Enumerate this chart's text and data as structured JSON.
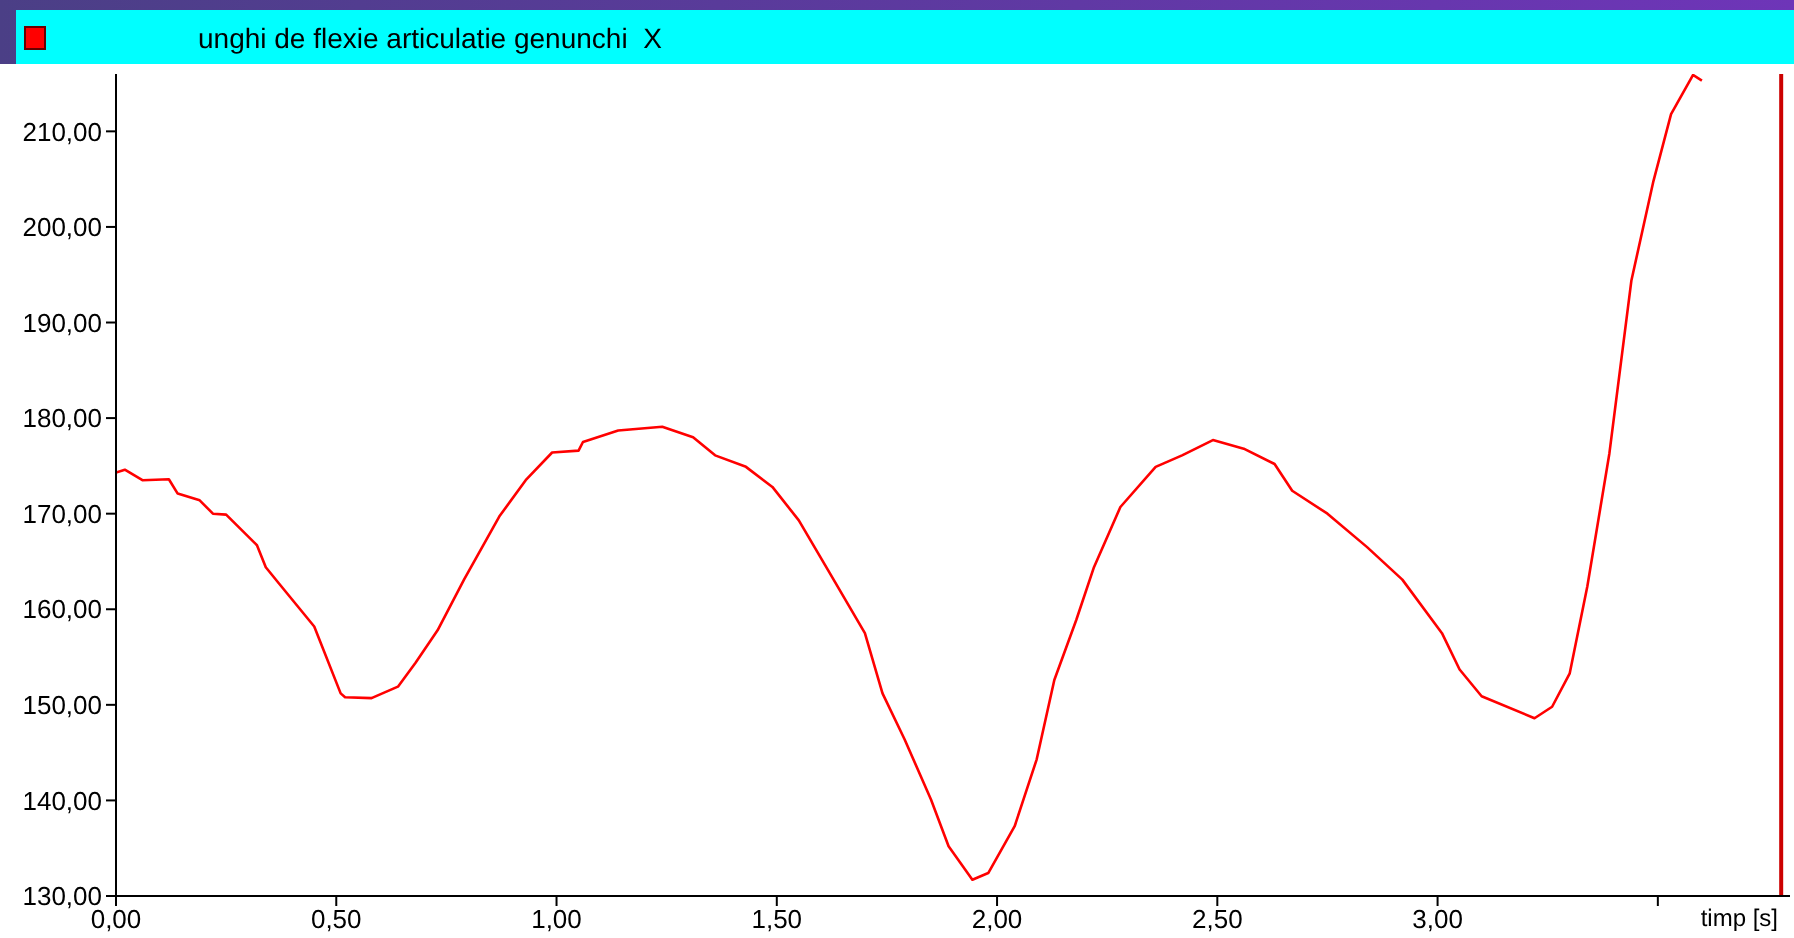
{
  "chart_data": {
    "type": "line",
    "title": "unghi de flexie articulatie genunchi  X",
    "xlabel": "timp [s]",
    "x": [
      0,
      0.02,
      0.06,
      0.12,
      0.14,
      0.19,
      0.22,
      0.25,
      0.32,
      0.34,
      0.37,
      0.45,
      0.51,
      0.52,
      0.58,
      0.64,
      0.68,
      0.73,
      0.79,
      0.87,
      0.93,
      0.99,
      1.05,
      1.06,
      1.14,
      1.24,
      1.31,
      1.36,
      1.43,
      1.49,
      1.55,
      1.62,
      1.7,
      1.74,
      1.79,
      1.85,
      1.89,
      1.944,
      1.98,
      2.04,
      2.09,
      2.13,
      2.18,
      2.22,
      2.28,
      2.36,
      2.42,
      2.49,
      2.56,
      2.63,
      2.67,
      2.75,
      2.84,
      2.92,
      3.01,
      3.05,
      3.1,
      3.22,
      3.26,
      3.3,
      3.34,
      3.39,
      3.44,
      3.49,
      3.53,
      3.58,
      3.6
    ],
    "series": [
      {
        "color": "#ff0000",
        "values": [
          174.3,
          174.6,
          173.5,
          173.6,
          172.1,
          171.4,
          170,
          169.9,
          166.7,
          164.4,
          162.7,
          158.2,
          151.2,
          150.8,
          150.7,
          151.9,
          154.4,
          157.8,
          163.1,
          169.7,
          173.5,
          176.4,
          176.6,
          177.5,
          178.7,
          179.1,
          178,
          176.1,
          174.9,
          172.8,
          169.3,
          163.8,
          157.5,
          151.2,
          146.4,
          140.1,
          135.2,
          131.7,
          132.4,
          137.3,
          144.3,
          152.6,
          158.9,
          164.4,
          170.7,
          174.9,
          176.1,
          177.7,
          176.8,
          175.2,
          172.4,
          170,
          166.5,
          163.1,
          157.5,
          153.7,
          150.9,
          148.6,
          149.8,
          153.3,
          162.4,
          176.3,
          194.4,
          204.8,
          211.8,
          215.9,
          215.3
        ]
      }
    ],
    "xlim": [
      0,
      3.8
    ],
    "ylim": [
      130,
      216
    ],
    "xticks": [
      {
        "value": 0,
        "label": "0,00"
      },
      {
        "value": 0.5,
        "label": "0,50"
      },
      {
        "value": 1,
        "label": "1,00"
      },
      {
        "value": 1.5,
        "label": "1,50"
      },
      {
        "value": 2,
        "label": "2,00"
      },
      {
        "value": 2.5,
        "label": "2,50"
      },
      {
        "value": 3,
        "label": "3,00"
      },
      {
        "value": 3.5,
        "label": null
      }
    ],
    "yticks": [
      {
        "value": 130,
        "label": "130,00"
      },
      {
        "value": 140,
        "label": "140,00"
      },
      {
        "value": 150,
        "label": "150,00"
      },
      {
        "value": 160,
        "label": "160,00"
      },
      {
        "value": 170,
        "label": "170,00"
      },
      {
        "value": 180,
        "label": "180,00"
      },
      {
        "value": 190,
        "label": "190,00"
      },
      {
        "value": 200,
        "label": "200,00"
      },
      {
        "value": 210,
        "label": "210,00"
      }
    ],
    "ref_lines": [
      {
        "axis": "x",
        "value": 3.78,
        "color": "#cc0000"
      }
    ],
    "grid": false,
    "legend": false,
    "marker": "none",
    "line_style": "solid"
  }
}
